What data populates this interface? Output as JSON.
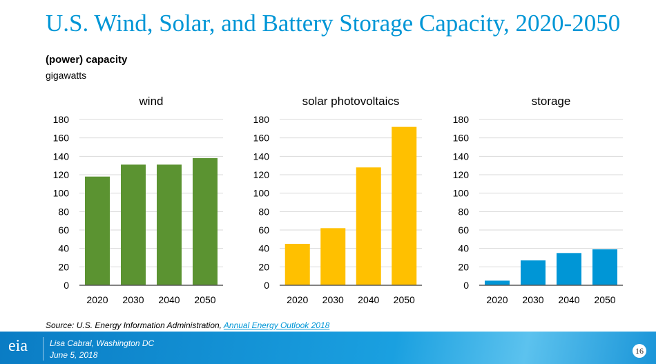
{
  "title": "U.S. Wind, Solar, and Battery Storage Capacity, 2020-2050",
  "subtitle": "(power) capacity",
  "unit": "gigawatts",
  "chart_data": [
    {
      "type": "bar",
      "title": "wind",
      "categories": [
        "2020",
        "2030",
        "2040",
        "2050"
      ],
      "values": [
        118,
        131,
        131,
        138
      ],
      "ylim": [
        0,
        180
      ],
      "yticks": [
        0,
        20,
        40,
        60,
        80,
        100,
        120,
        140,
        160,
        180
      ],
      "grid": true,
      "color": "#5b9331"
    },
    {
      "type": "bar",
      "title": "solar photovoltaics",
      "categories": [
        "2020",
        "2030",
        "2040",
        "2050"
      ],
      "values": [
        45,
        62,
        128,
        172
      ],
      "ylim": [
        0,
        180
      ],
      "yticks": [
        0,
        20,
        40,
        60,
        80,
        100,
        120,
        140,
        160,
        180
      ],
      "grid": true,
      "color": "#ffc000"
    },
    {
      "type": "bar",
      "title": "storage",
      "categories": [
        "2020",
        "2030",
        "2040",
        "2050"
      ],
      "values": [
        5,
        27,
        35,
        39
      ],
      "ylim": [
        0,
        180
      ],
      "yticks": [
        0,
        20,
        40,
        60,
        80,
        100,
        120,
        140,
        160,
        180
      ],
      "grid": true,
      "color": "#0096d6"
    }
  ],
  "source": {
    "prefix": "Source: U.S. Energy Information Administration, ",
    "link": "Annual Energy Outlook 2018"
  },
  "footer": {
    "logo": "eia",
    "author": "Lisa Cabral, Washington DC",
    "date": "June 5, 2018",
    "page": "16"
  }
}
